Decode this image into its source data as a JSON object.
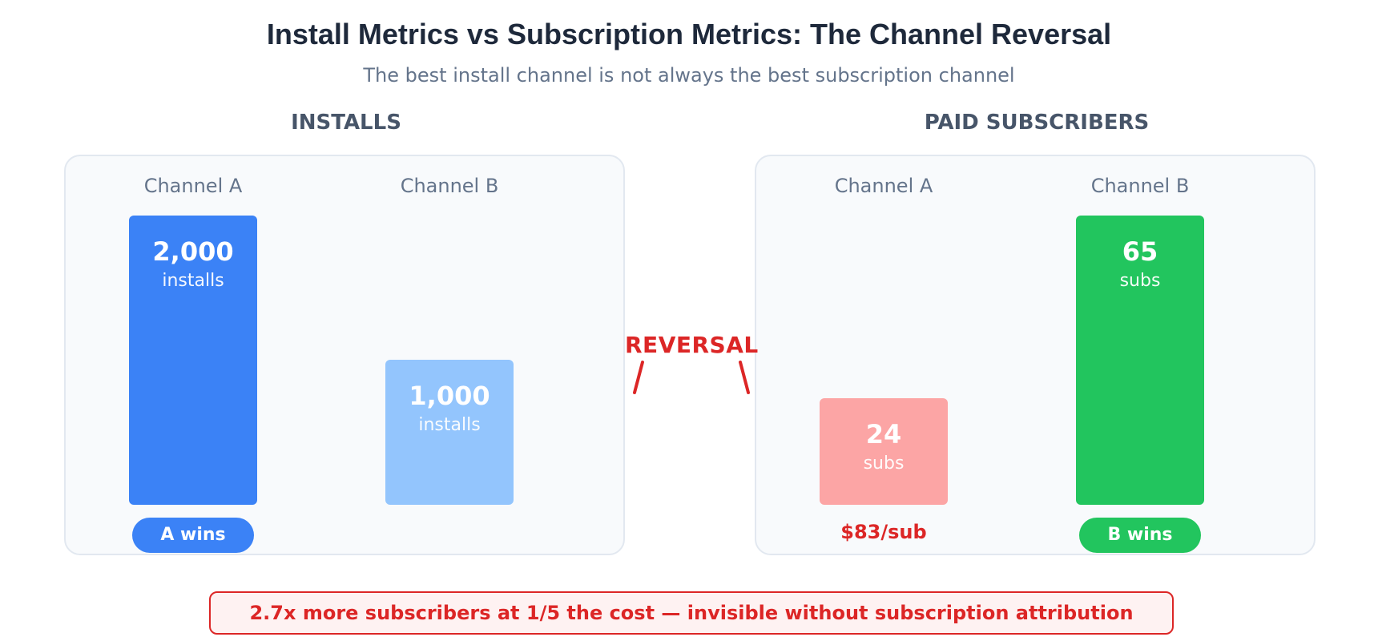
{
  "title": "Install Metrics vs Subscription Metrics: The Channel Reversal",
  "subtitle": "The best install channel is not always the best subscription channel",
  "reversal_label": "REVERSAL",
  "callout": "2.7x more subscribers at 1/5 the cost — invisible without subscription attribution",
  "colors": {
    "channel_a_installs": "#3b82f6",
    "channel_b_installs": "#93c5fd",
    "channel_a_subs": "#fca5a5",
    "channel_b_subs": "#22c55e",
    "accent_red": "#dc2626"
  },
  "chart_data": [
    {
      "type": "bar",
      "title": "INSTALLS",
      "categories": [
        "Channel A",
        "Channel B"
      ],
      "values": [
        2000,
        1000
      ],
      "value_labels": [
        "2,000",
        "1,000"
      ],
      "unit": "installs",
      "badge": {
        "channel": "Channel A",
        "text": "A wins"
      }
    },
    {
      "type": "bar",
      "title": "PAID SUBSCRIBERS",
      "categories": [
        "Channel A",
        "Channel B"
      ],
      "values": [
        24,
        65
      ],
      "value_labels": [
        "24",
        "65"
      ],
      "unit": "subs",
      "cost_note": {
        "channel": "Channel A",
        "text": "$83/sub"
      },
      "badge": {
        "channel": "Channel B",
        "text": "B wins"
      }
    }
  ]
}
